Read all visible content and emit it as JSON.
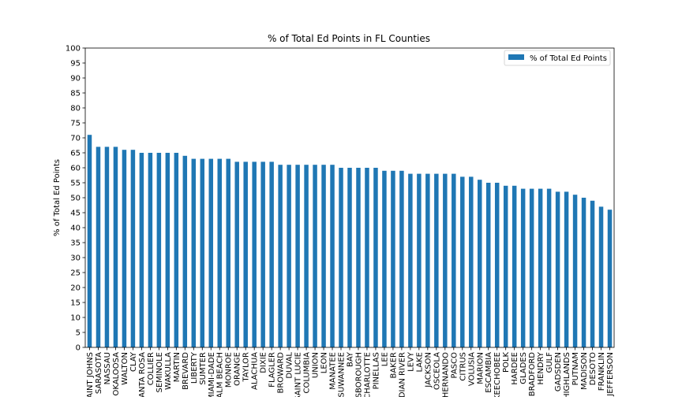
{
  "chart_data": {
    "type": "bar",
    "title": "% of Total Ed Points in FL Counties",
    "ylabel": "% of Total Ed Points",
    "xlabel": "",
    "ylim": [
      0,
      100
    ],
    "yticks": [
      0,
      5,
      10,
      15,
      20,
      25,
      30,
      35,
      40,
      45,
      50,
      55,
      60,
      65,
      70,
      75,
      80,
      85,
      90,
      95,
      100
    ],
    "grid": false,
    "legend_position": "top-right",
    "color": "#1f77b4",
    "categories": [
      "SAINT JOHNS",
      "SARASOTA",
      "NASSAU",
      "OKALOOSA",
      "WALTON",
      "CLAY",
      "SANTA ROSA",
      "COLLIER",
      "SEMINOLE",
      "WAKULLA",
      "MARTIN",
      "BREVARD",
      "LIBERTY",
      "SUMTER",
      "MIAMI-DADE",
      "PALM BEACH",
      "MONROE",
      "ORANGE",
      "TAYLOR",
      "ALACHUA",
      "DIXIE",
      "FLAGLER",
      "BROWARD",
      "DUVAL",
      "SAINT LUCIE",
      "COLUMBIA",
      "UNION",
      "LEON",
      "MANATEE",
      "SUWANNEE",
      "BAY",
      "HILLSBOROUGH",
      "CHARLOTTE",
      "PINELLAS",
      "LEE",
      "BAKER",
      "INDIAN RIVER",
      "LEVY",
      "LAKE",
      "JACKSON",
      "OSCEOLA",
      "HERNANDO",
      "PASCO",
      "CITRUS",
      "VOLUSIA",
      "MARION",
      "ESCAMBIA",
      "OKEECHOBEE",
      "POLK",
      "HARDEE",
      "GLADES",
      "BRADFORD",
      "HENDRY",
      "GULF",
      "GADSDEN",
      "HIGHLANDS",
      "PUTNAM",
      "MADISON",
      "DESOTO",
      "FRANKLIN",
      "JEFFERSON"
    ],
    "series": [
      {
        "name": "% of Total Ed Points",
        "values": [
          71,
          67,
          67,
          67,
          66,
          66,
          65,
          65,
          65,
          65,
          65,
          64,
          63,
          63,
          63,
          63,
          63,
          62,
          62,
          62,
          62,
          62,
          61,
          61,
          61,
          61,
          61,
          61,
          61,
          60,
          60,
          60,
          60,
          60,
          59,
          59,
          59,
          58,
          58,
          58,
          58,
          58,
          58,
          57,
          57,
          56,
          55,
          55,
          54,
          54,
          53,
          53,
          53,
          53,
          52,
          52,
          51,
          50,
          49,
          47,
          46
        ]
      }
    ]
  }
}
